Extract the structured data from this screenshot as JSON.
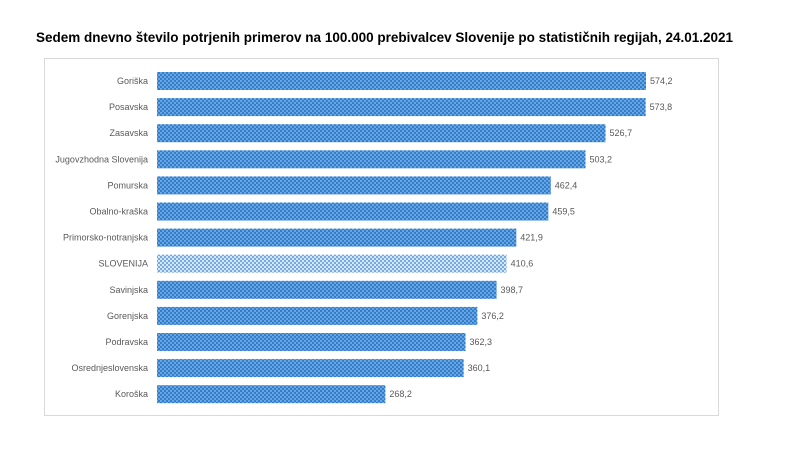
{
  "chart_data": {
    "type": "bar",
    "orientation": "horizontal",
    "title": "Sedem dnevno število potrjenih primerov na 100.000  prebivalcev Slovenije po statističnih regijah, 24.01.2021",
    "categories": [
      "Goriška",
      "Posavska",
      "Zasavska",
      "Jugovzhodna Slovenija",
      "Pomurska",
      "Obalno-kraška",
      "Primorsko-notranjska",
      "SLOVENIJA",
      "Savinjska",
      "Gorenjska",
      "Podravska",
      "Osrednjeslovenska",
      "Koroška"
    ],
    "values": [
      574.2,
      573.8,
      526.7,
      503.2,
      462.4,
      459.5,
      421.9,
      410.6,
      398.7,
      376.2,
      362.3,
      360.1,
      268.2
    ],
    "value_labels": [
      "574,2",
      "573,8",
      "526,7",
      "503,2",
      "462,4",
      "459,5",
      "421,9",
      "410,6",
      "398,7",
      "376,2",
      "362,3",
      "360,1",
      "268,2"
    ],
    "highlight_category": "SLOVENIJA",
    "xlim": [
      0,
      600
    ],
    "grid": false,
    "legend": "none",
    "colors": {
      "bar": "#2e7fd0",
      "bar_dot": "#c9def3",
      "highlight": "#d6e7f7",
      "highlight_dot": "#2e7fd0",
      "label": "#595959"
    }
  }
}
